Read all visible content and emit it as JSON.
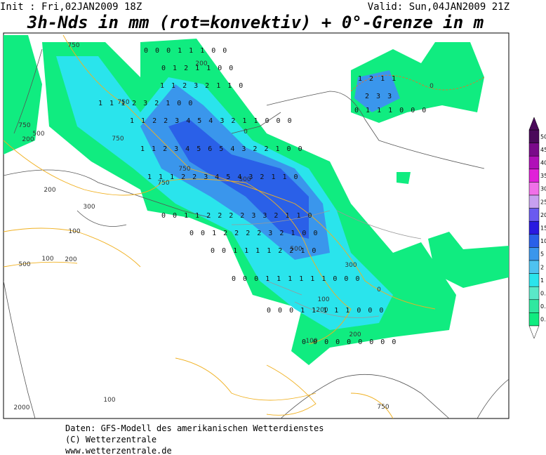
{
  "header": {
    "init": "Init : Fri,02JAN2009 18Z",
    "valid": "Valid: Sun,04JAN2009 21Z",
    "title": "3h-Nds in mm (rot=konvektiv) + 0°-Grenze in m"
  },
  "legend": {
    "levels": [
      50,
      45,
      40,
      35,
      30,
      25,
      20,
      15,
      10,
      5,
      2,
      1,
      0.5,
      0.2,
      0.1
    ],
    "colors": [
      "#4a0a5a",
      "#7a0a8a",
      "#b010b8",
      "#e020d8",
      "#f070e8",
      "#c8a0f0",
      "#6a5af0",
      "#2a1ae0",
      "#2a60e8",
      "#3a96ec",
      "#4ec2f0",
      "#2ae4ec",
      "#5ae8c8",
      "#30e8a0",
      "#10ec80"
    ]
  },
  "map": {
    "contour_labels": [
      "750",
      "750",
      "200",
      "750",
      "750",
      "500",
      "200",
      "750",
      "750",
      "500",
      "200",
      "300",
      "100",
      "500",
      "100",
      "200",
      "300",
      "500",
      "100",
      "200",
      "100",
      "200",
      "100",
      "2000",
      "750",
      "0",
      "0",
      "0"
    ],
    "digit_rows": [
      "0 0 0 1 1 1 0 0",
      "0 1 2 1 1 0 0",
      "1 1 2 3 2 1 1 0",
      "1 1 1 2 3 2 1 0 0",
      "1 1 2 2 3 4 5 4 3 2 1 1 0 0 0",
      "1 1 2 3 4 5 6 5 4 3 2 2 1 0 0",
      "1 1 1 2 2 3 4 5 4 3 2 1 1 0",
      "0 0 1 1 2 2 2 2 3 3 2 1 1 0",
      "0 0 1 2 2 2 2 3 2 1 0 0",
      "0 0 1 1 1 1 2 2 1 0",
      "0 0 0 1 1 1 1 1 1 0 0 0",
      "0 0 0 1 1 1 1 1 0 0 0",
      "0 0 0 0 0 0 0 0 0",
      "1 2 1 1",
      "2 3 3",
      "0 1 1 1 0 0 0"
    ]
  },
  "footer": {
    "line1": "Daten: GFS-Modell des amerikanischen Wetterdienstes",
    "line2": "(C) Wetterzentrale",
    "line3": "www.wetterzentrale.de"
  }
}
